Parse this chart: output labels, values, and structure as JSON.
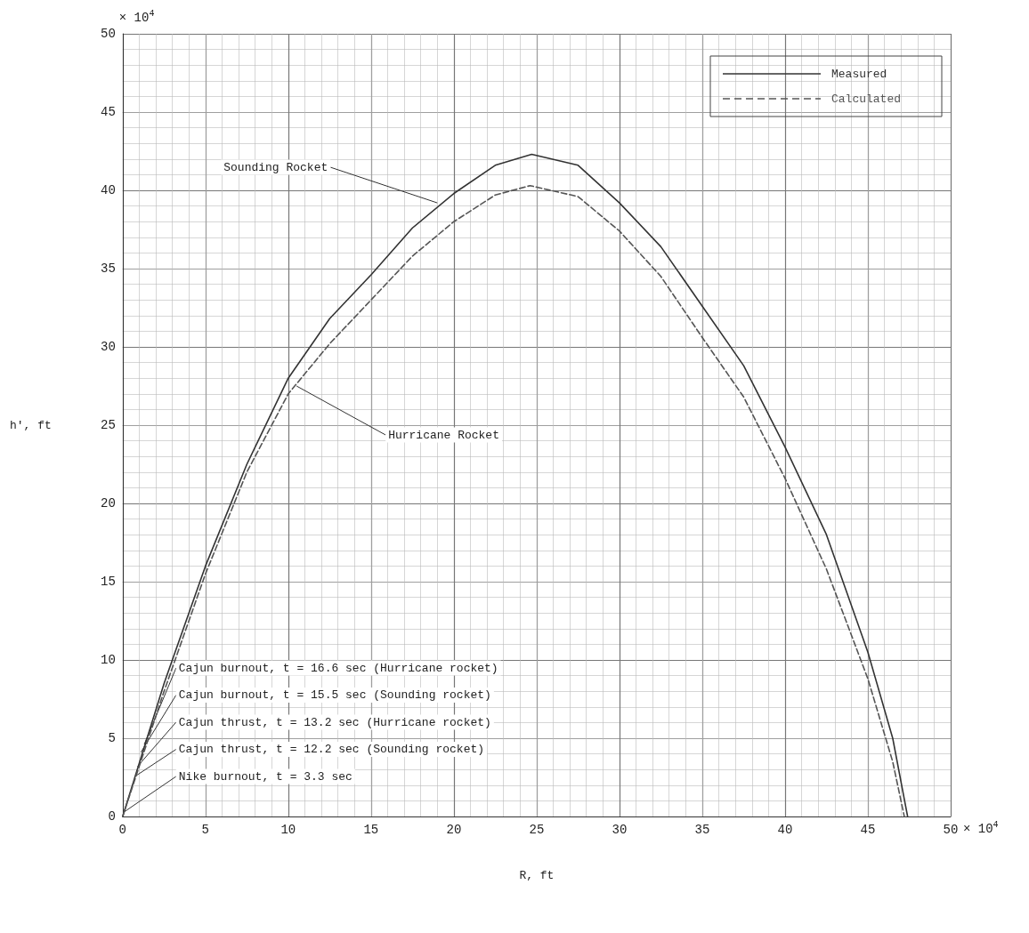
{
  "chart_data": {
    "type": "line",
    "xlabel": "R, ft",
    "ylabel": "h', ft",
    "xlim": [
      0,
      50
    ],
    "ylim": [
      0,
      50
    ],
    "xticks": [
      0,
      5,
      10,
      15,
      20,
      25,
      30,
      35,
      40,
      45,
      50
    ],
    "yticks": [
      0,
      5,
      10,
      15,
      20,
      25,
      30,
      35,
      40,
      45,
      50
    ],
    "grid": true,
    "legend": "top right",
    "marker": "none",
    "series": [
      {
        "name": "Measured",
        "color": "#333333",
        "line_style": "solid",
        "x": [
          0,
          2.5,
          5,
          7.5,
          10,
          12.5,
          15,
          17.5,
          20,
          22.5,
          24.7,
          27.5,
          30,
          32.5,
          35,
          37.5,
          40,
          42.5,
          45,
          46.5,
          47.4
        ],
        "values": [
          0,
          8.5,
          16,
          22.5,
          28,
          31.8,
          34.6,
          37.6,
          39.8,
          41.6,
          42.3,
          41.6,
          39.2,
          36.4,
          32.6,
          28.8,
          23.6,
          18,
          10.5,
          5,
          0
        ]
      },
      {
        "name": "Calculated",
        "color": "#555555",
        "line_style": "dashed",
        "x": [
          0,
          2.5,
          5,
          7.5,
          10,
          12.5,
          15,
          17.5,
          20,
          22.5,
          24.6,
          27.5,
          30,
          32.5,
          35,
          37.5,
          40,
          42.5,
          45,
          46.5,
          47.2
        ],
        "values": [
          0,
          8,
          15.5,
          22,
          27,
          30.2,
          33,
          35.8,
          38,
          39.7,
          40.3,
          39.6,
          37.4,
          34.5,
          30.6,
          26.8,
          21.6,
          15.8,
          8.8,
          3.5,
          0
        ]
      }
    ],
    "annotations": [
      {
        "text": "Sounding Rocket",
        "x": 19,
        "y": 39.2
      },
      {
        "text": "Hurricane Rocket",
        "x": 10.5,
        "y": 27.5
      },
      {
        "text": "Cajun burnout, t = 16.6 sec (Hurricane rocket)",
        "x": 1.3,
        "y": 4.6
      },
      {
        "text": "Cajun burnout, t = 15.5 sec (Sounding rocket)",
        "x": 1.1,
        "y": 4.1
      },
      {
        "text": "Cajun thrust, t = 13.2 sec (Hurricane rocket)",
        "x": 0.9,
        "y": 3.2
      },
      {
        "text": "Cajun thrust, t = 12.2 sec (Sounding rocket)",
        "x": 0.8,
        "y": 2.6
      },
      {
        "text": "Nike burnout, t = 3.3 sec",
        "x": 0.1,
        "y": 0.3
      },
      "× 10$^{4}$",
      "× 10$^{4}$"
    ]
  }
}
